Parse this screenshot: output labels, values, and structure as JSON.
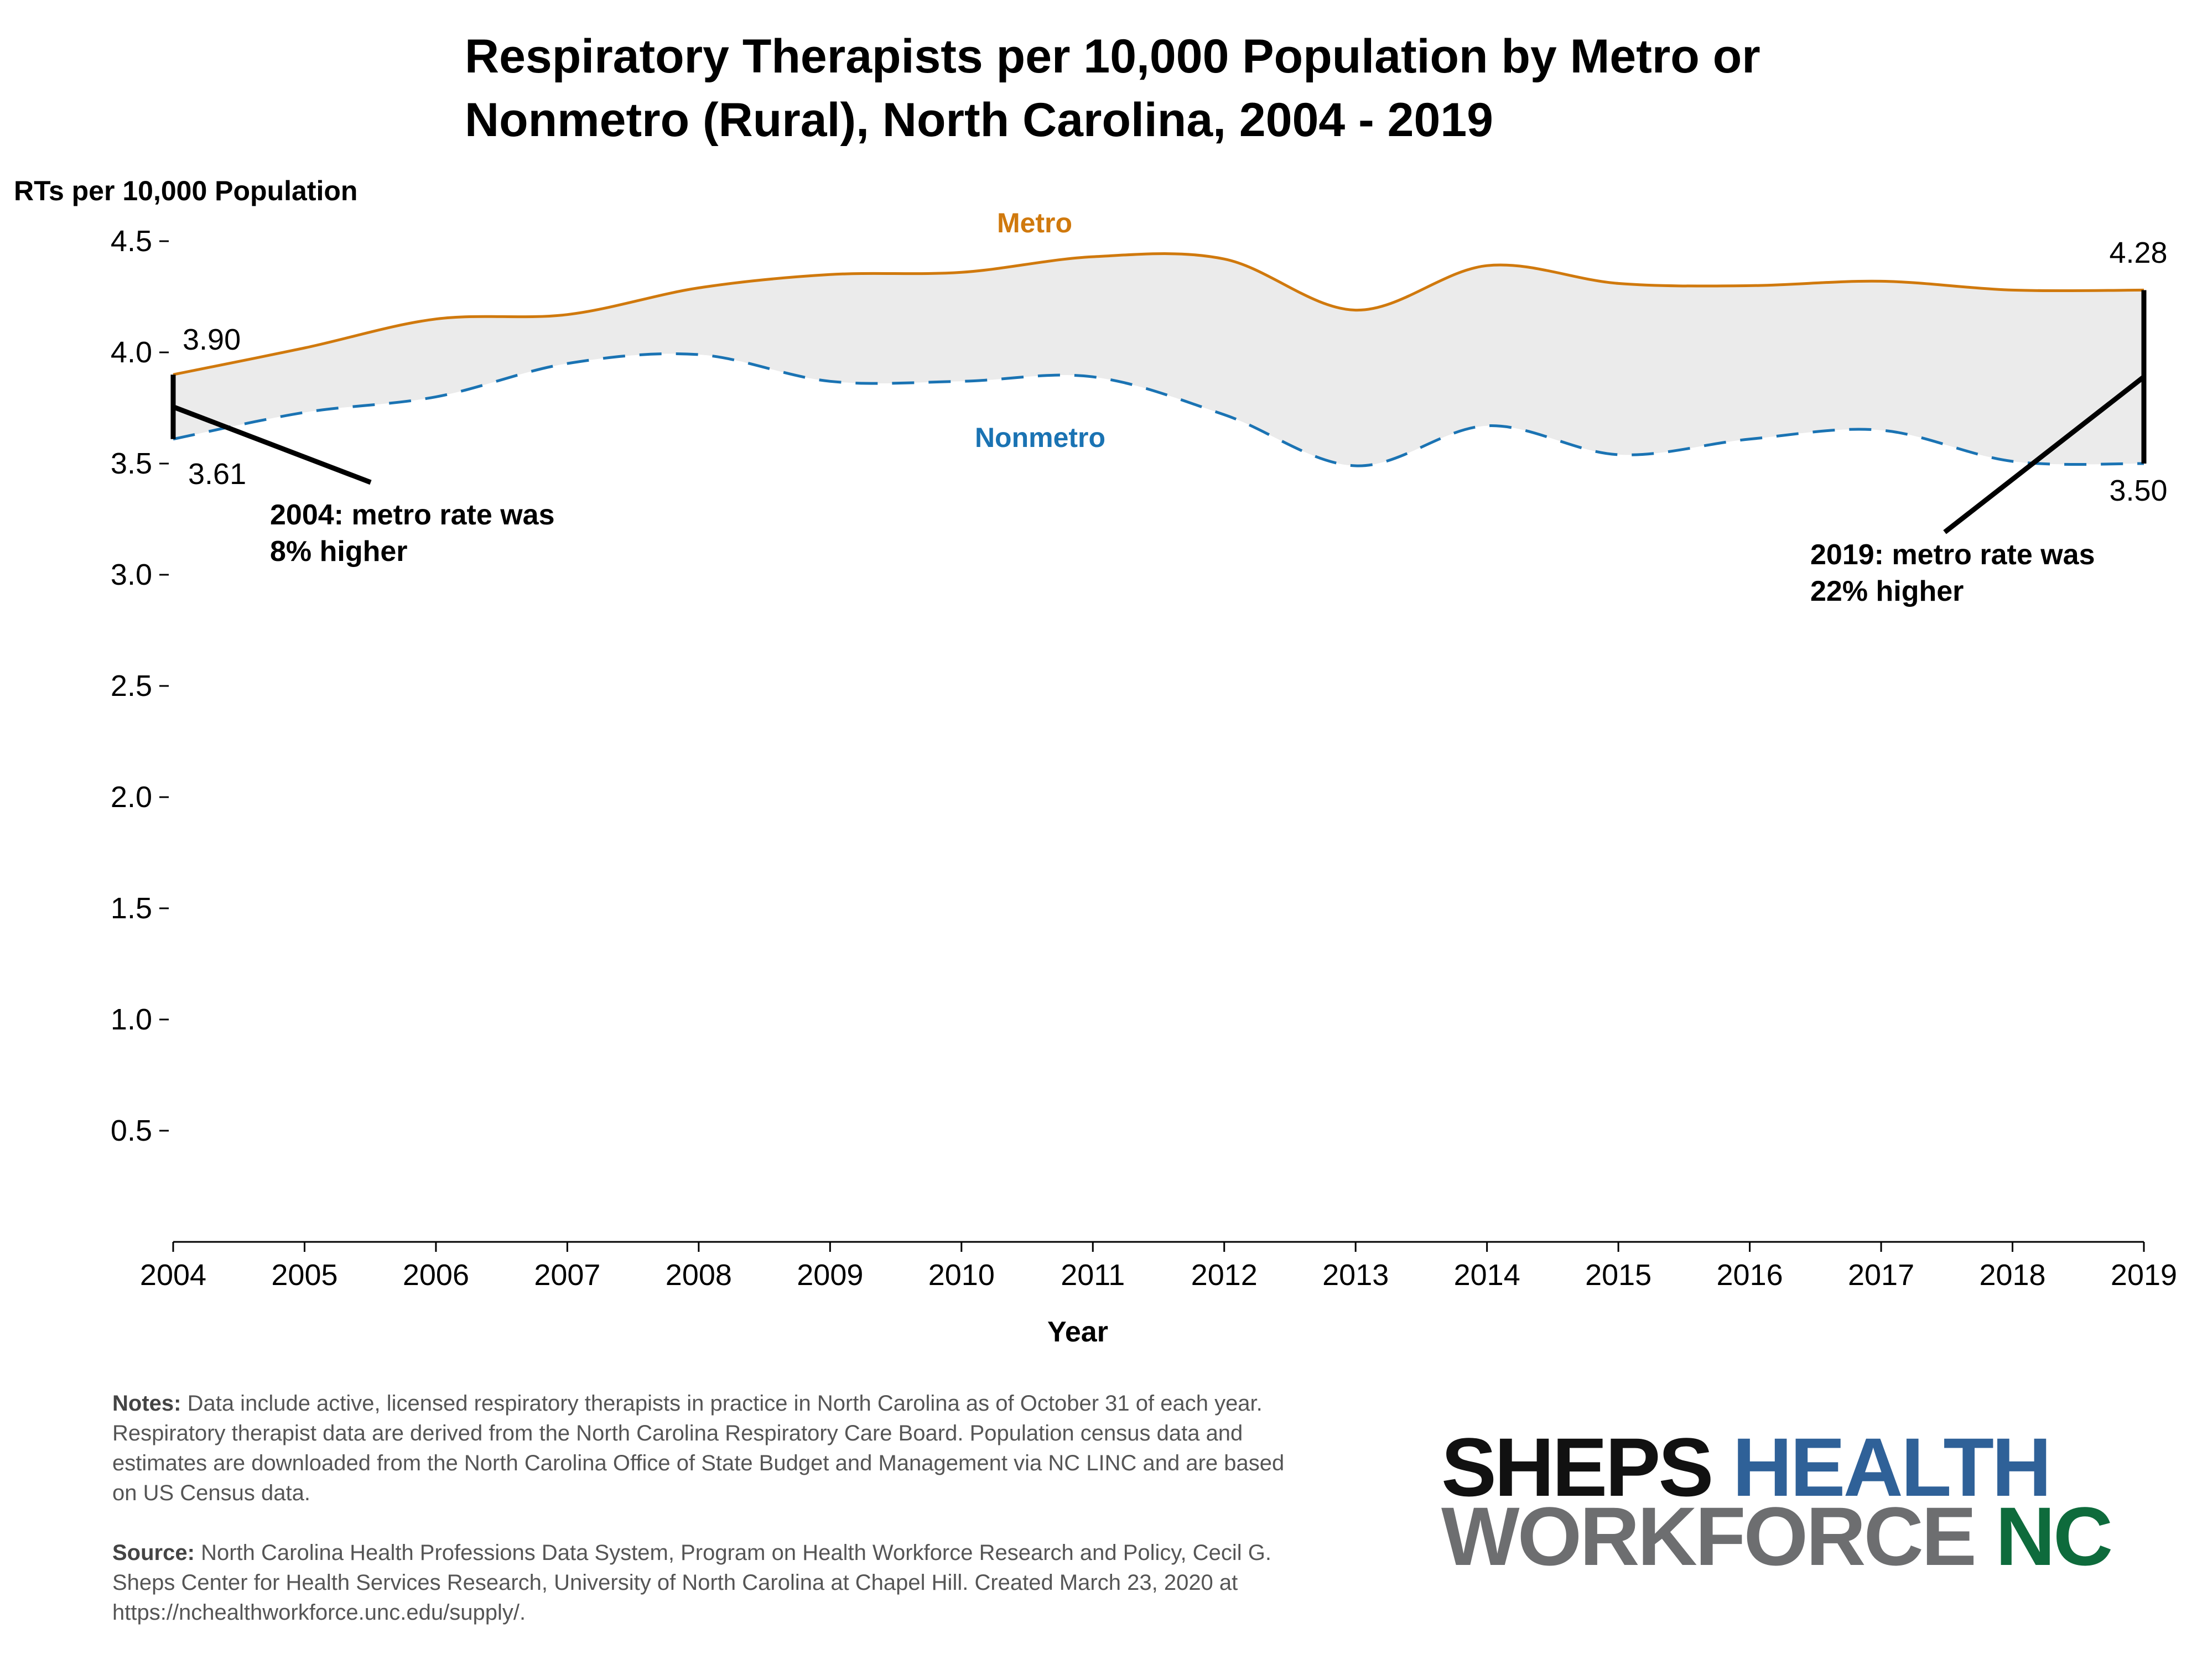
{
  "chart_data": {
    "type": "line",
    "title_lines": [
      "Respiratory Therapists per 10,000 Population by Metro or",
      "Nonmetro (Rural), North Carolina, 2004 - 2019"
    ],
    "ylabel": "RTs per 10,000 Population",
    "xlabel": "Year",
    "ylim": [
      0,
      4.5
    ],
    "yticks": [
      "0.5",
      "1.0",
      "1.5",
      "2.0",
      "2.5",
      "3.0",
      "3.5",
      "4.0",
      "4.5"
    ],
    "x": [
      "2004",
      "2005",
      "2006",
      "2007",
      "2008",
      "2009",
      "2010",
      "2011",
      "2012",
      "2013",
      "2014",
      "2015",
      "2016",
      "2017",
      "2018",
      "2019"
    ],
    "series": [
      {
        "name": "Metro",
        "color": "#d0790d",
        "line_style": "solid",
        "values": [
          3.9,
          4.02,
          4.15,
          4.17,
          4.29,
          4.35,
          4.36,
          4.43,
          4.42,
          4.19,
          4.39,
          4.31,
          4.3,
          4.32,
          4.28,
          4.28
        ]
      },
      {
        "name": "Nonmetro",
        "color": "#1a73b3",
        "line_style": "dashed",
        "values": [
          3.61,
          3.73,
          3.8,
          3.95,
          3.99,
          3.87,
          3.87,
          3.89,
          3.72,
          3.49,
          3.67,
          3.54,
          3.61,
          3.65,
          3.51,
          3.5
        ]
      }
    ],
    "fill_between": {
      "color": "#ebebeb"
    },
    "value_labels": {
      "metro_2004": "3.90",
      "nonmetro_2004": "3.61",
      "metro_2019": "4.28",
      "nonmetro_2019": "3.50"
    },
    "annotations": [
      {
        "lines": [
          "2004: metro rate was",
          "8% higher"
        ]
      },
      {
        "lines": [
          "2019: metro rate was",
          "22% higher"
        ]
      }
    ],
    "grid": false,
    "legend": "direct labels on lines"
  },
  "notes": {
    "notes_heading": "Notes:",
    "notes_text": "Data include active, licensed respiratory therapists in practice in North Carolina as of October 31 of each year. Respiratory therapist data are derived from the North Carolina Respiratory Care Board. Population census data and estimates are downloaded from the North Carolina Office of State Budget and Management via NC LINC and are based on US Census data.",
    "source_heading": "Source:",
    "source_text": "North Carolina Health Professions Data System, Program on Health Workforce Research and Policy, Cecil G. Sheps Center for Health Services Research, University of North Carolina at Chapel Hill. Created March 23, 2020 at https://nchealthworkforce.unc.edu/supply/."
  },
  "logo": {
    "word1": "SHEPS",
    "word2": "HEALTH",
    "word3": "WORKFORCE",
    "word4": "NC"
  }
}
